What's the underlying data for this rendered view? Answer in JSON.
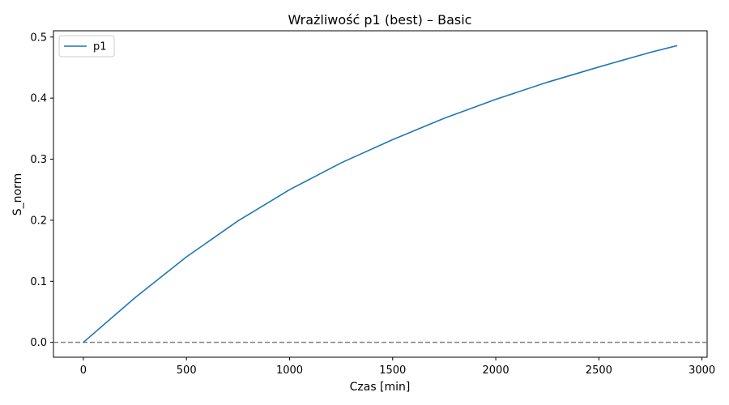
{
  "chart_data": {
    "type": "line",
    "title": "Wrażliwość p1 (best) – Basic",
    "xlabel": "Czas [min]",
    "ylabel": "S_norm",
    "xlim": [
      -145,
      3025
    ],
    "ylim": [
      -0.0243,
      0.5103
    ],
    "x_ticks": [
      0,
      500,
      1000,
      1500,
      2000,
      2500,
      3000
    ],
    "y_ticks": [
      0.0,
      0.1,
      0.2,
      0.3,
      0.4,
      0.5
    ],
    "y_tick_labels": [
      "0.0",
      "0.1",
      "0.2",
      "0.3",
      "0.4",
      "0.5"
    ],
    "grid": false,
    "legend": {
      "position": "top-left",
      "entries": [
        "p1"
      ]
    },
    "reference_line": {
      "y": 0.0,
      "style": "dashed",
      "color": "#808080"
    },
    "series": [
      {
        "name": "p1",
        "color": "#1f77b4",
        "x": [
          0,
          250,
          500,
          750,
          1000,
          1250,
          1500,
          1750,
          2000,
          2250,
          2500,
          2750,
          2880
        ],
        "y": [
          0.0,
          0.073,
          0.14,
          0.199,
          0.25,
          0.294,
          0.332,
          0.367,
          0.398,
          0.426,
          0.451,
          0.475,
          0.486
        ]
      }
    ]
  }
}
